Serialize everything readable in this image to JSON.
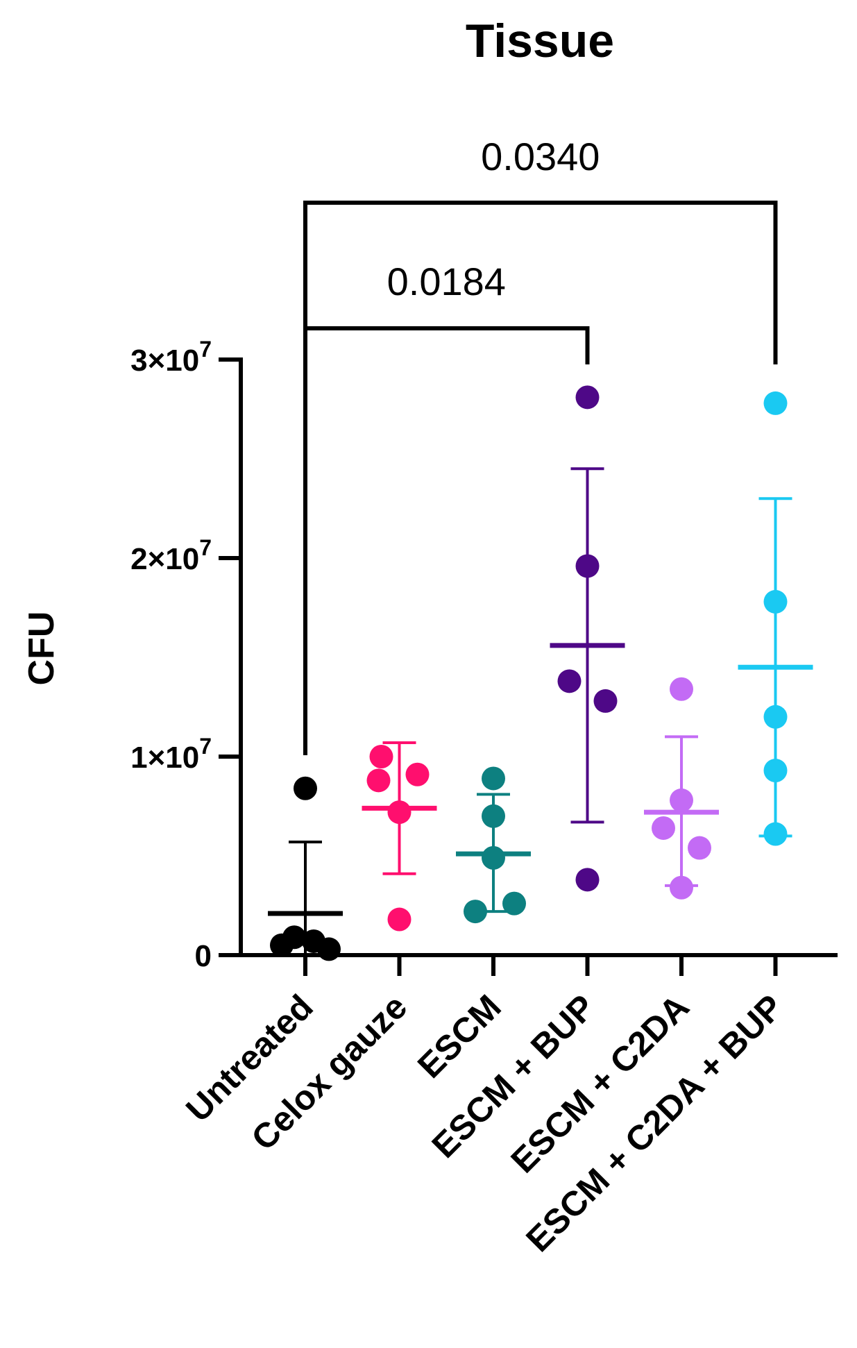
{
  "chart_data": {
    "type": "scatter",
    "title": "Tissue",
    "xlabel": "",
    "ylabel": "CFU",
    "ylim": [
      0,
      30000000
    ],
    "yticks": [
      {
        "value": 0,
        "mantissa": "0",
        "exponent": ""
      },
      {
        "value": 10000000,
        "mantissa": "1×10",
        "exponent": "7"
      },
      {
        "value": 20000000,
        "mantissa": "2×10",
        "exponent": "7"
      },
      {
        "value": 30000000,
        "mantissa": "3×10",
        "exponent": "7"
      }
    ],
    "categories": [
      "Untreated",
      "Celox gauze",
      "ESCM",
      "ESCM + BUP",
      "ESCM + C2DA",
      "ESCM + C2DA + BUP"
    ],
    "series": [
      {
        "name": "Untreated",
        "color": "#000000",
        "points": [
          8400000,
          900000,
          700000,
          500000,
          300000
        ],
        "mean": 2100000,
        "sd_low": 0,
        "sd_high": 5700000
      },
      {
        "name": "Celox gauze",
        "color": "#ff0f6e",
        "points": [
          10000000,
          9100000,
          8800000,
          7200000,
          1800000
        ],
        "mean": 7400000,
        "sd_low": 4100000,
        "sd_high": 10700000
      },
      {
        "name": "ESCM",
        "color": "#0d8080",
        "points": [
          8900000,
          7000000,
          4900000,
          2600000,
          2200000
        ],
        "mean": 5100000,
        "sd_low": 2200000,
        "sd_high": 8100000
      },
      {
        "name": "ESCM + BUP",
        "color": "#4e0887",
        "points": [
          28100000,
          19600000,
          13800000,
          12800000,
          3800000
        ],
        "mean": 15600000,
        "sd_low": 6700000,
        "sd_high": 24500000
      },
      {
        "name": "ESCM + C2DA",
        "color": "#c36bf5",
        "points": [
          13400000,
          7800000,
          6400000,
          5400000,
          3400000
        ],
        "mean": 7200000,
        "sd_low": 3500000,
        "sd_high": 11000000
      },
      {
        "name": "ESCM + C2DA + BUP",
        "color": "#1ac9f2",
        "points": [
          27800000,
          17800000,
          12000000,
          9300000,
          6100000
        ],
        "mean": 14500000,
        "sd_low": 6000000,
        "sd_high": 23000000
      }
    ],
    "annotations": [
      {
        "from": "Untreated",
        "to": "ESCM + BUP",
        "label": "0.0184"
      },
      {
        "from": "Untreated",
        "to": "ESCM + C2DA + BUP",
        "label": "0.0340"
      }
    ]
  }
}
